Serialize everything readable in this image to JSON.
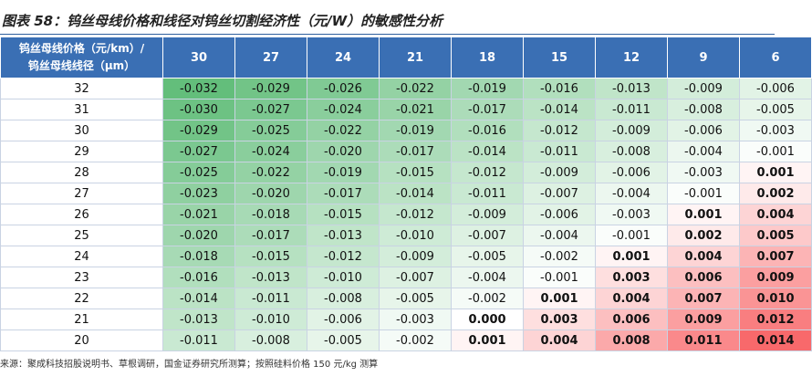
{
  "header": {
    "title": "图表 58：钨丝母线价格和线径对钨丝切割经济性（元/W）的敏感性分析"
  },
  "table": {
    "corner": [
      "钨丝母线价格（元/km）/",
      "钨丝母线线径（μm）"
    ],
    "columns": [
      "30",
      "27",
      "24",
      "21",
      "18",
      "15",
      "12",
      "9",
      "6"
    ],
    "rows": [
      {
        "label": "32",
        "cells": [
          "-0.032",
          "-0.029",
          "-0.026",
          "-0.022",
          "-0.019",
          "-0.016",
          "-0.013",
          "-0.009",
          "-0.006"
        ]
      },
      {
        "label": "31",
        "cells": [
          "-0.030",
          "-0.027",
          "-0.024",
          "-0.021",
          "-0.017",
          "-0.014",
          "-0.011",
          "-0.008",
          "-0.005"
        ]
      },
      {
        "label": "30",
        "cells": [
          "-0.029",
          "-0.025",
          "-0.022",
          "-0.019",
          "-0.016",
          "-0.012",
          "-0.009",
          "-0.006",
          "-0.003"
        ]
      },
      {
        "label": "29",
        "cells": [
          "-0.027",
          "-0.024",
          "-0.020",
          "-0.017",
          "-0.014",
          "-0.011",
          "-0.008",
          "-0.004",
          "-0.001"
        ]
      },
      {
        "label": "28",
        "cells": [
          "-0.025",
          "-0.022",
          "-0.019",
          "-0.015",
          "-0.012",
          "-0.009",
          "-0.006",
          "-0.003",
          "0.001"
        ]
      },
      {
        "label": "27",
        "cells": [
          "-0.023",
          "-0.020",
          "-0.017",
          "-0.014",
          "-0.011",
          "-0.007",
          "-0.004",
          "-0.001",
          "0.002"
        ]
      },
      {
        "label": "26",
        "cells": [
          "-0.021",
          "-0.018",
          "-0.015",
          "-0.012",
          "-0.009",
          "-0.006",
          "-0.003",
          "0.001",
          "0.004"
        ]
      },
      {
        "label": "25",
        "cells": [
          "-0.020",
          "-0.017",
          "-0.013",
          "-0.010",
          "-0.007",
          "-0.004",
          "-0.001",
          "0.002",
          "0.005"
        ]
      },
      {
        "label": "24",
        "cells": [
          "-0.018",
          "-0.015",
          "-0.012",
          "-0.009",
          "-0.005",
          "-0.002",
          "0.001",
          "0.004",
          "0.007"
        ]
      },
      {
        "label": "23",
        "cells": [
          "-0.016",
          "-0.013",
          "-0.010",
          "-0.007",
          "-0.004",
          "-0.001",
          "0.003",
          "0.006",
          "0.009"
        ]
      },
      {
        "label": "22",
        "cells": [
          "-0.014",
          "-0.011",
          "-0.008",
          "-0.005",
          "-0.002",
          "0.001",
          "0.004",
          "0.007",
          "0.010"
        ]
      },
      {
        "label": "21",
        "cells": [
          "-0.013",
          "-0.010",
          "-0.006",
          "-0.003",
          "0.000",
          "0.003",
          "0.006",
          "0.009",
          "0.012"
        ]
      },
      {
        "label": "20",
        "cells": [
          "-0.011",
          "-0.008",
          "-0.005",
          "-0.002",
          "0.001",
          "0.004",
          "0.008",
          "0.011",
          "0.014"
        ]
      }
    ]
  },
  "footer": {
    "source": "来源：聚成科技招股说明书、草根调研，国金证券研究所测算；按照硅料价格 150 元/kg 测算"
  }
}
